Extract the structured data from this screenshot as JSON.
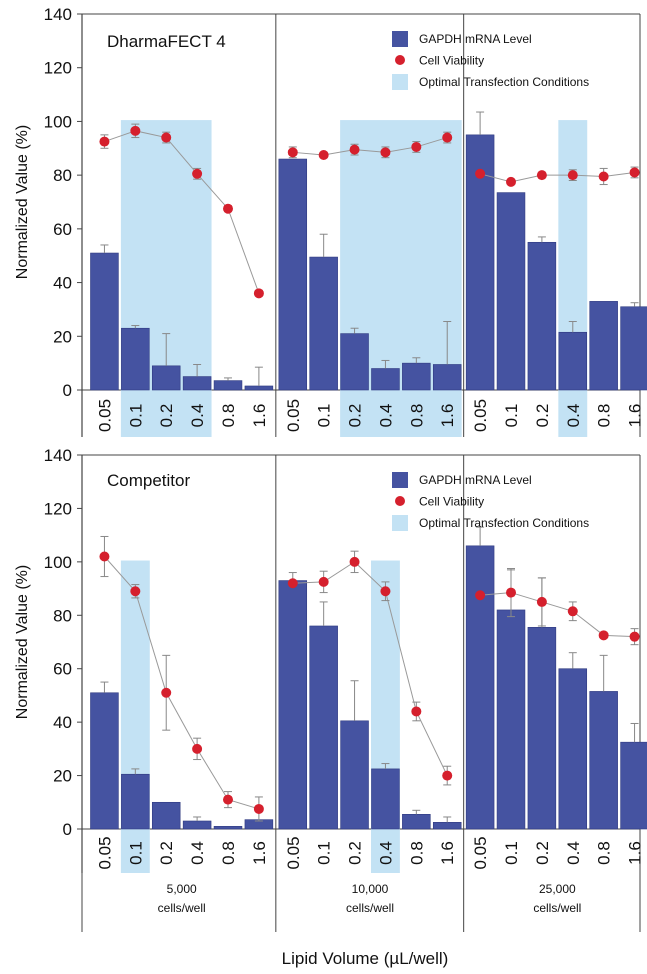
{
  "figure": {
    "xlabel": "Lipid Volume (µL/well)",
    "ylabel": "Normalized Value (%)"
  },
  "colors": {
    "bar": "#4553a1",
    "bar_edge": "#2f3a80",
    "viability": "#d5202d",
    "highlight": "#c3e2f4",
    "axis": "#444444",
    "grid_text": "#111111"
  },
  "groups": [
    {
      "label_line1": "5,000",
      "label_line2": "cells/well"
    },
    {
      "label_line1": "10,000",
      "label_line2": "cells/well"
    },
    {
      "label_line1": "25,000",
      "label_line2": "cells/well"
    }
  ],
  "chart_data": [
    {
      "type": "bar",
      "title": "DharmaFECT 4",
      "ylabel": "Normalized Value (%)",
      "xlabel": "Lipid Volume (µL/well)",
      "ylim": [
        0,
        140
      ],
      "yticks": [
        0,
        20,
        40,
        60,
        80,
        100,
        120,
        140
      ],
      "categories": [
        "0.05",
        "0.1",
        "0.2",
        "0.4",
        "0.8",
        "1.6",
        "0.05",
        "0.1",
        "0.2",
        "0.4",
        "0.8",
        "1.6",
        "0.05",
        "0.1",
        "0.2",
        "0.4",
        "0.8",
        "1.6"
      ],
      "legend": [
        "GAPDH mRNA Level",
        "Cell Viability",
        "Optimal Transfection Conditions"
      ],
      "legend_position": "top-right",
      "series": [
        {
          "name": "GAPDH mRNA Level",
          "kind": "bar",
          "values": [
            51,
            23,
            9,
            5,
            3.5,
            1.5,
            86,
            49.5,
            21,
            8,
            10,
            9.5,
            95,
            73.5,
            55,
            21.5,
            33,
            31
          ],
          "errors": [
            3,
            1,
            12,
            4.5,
            1,
            7,
            0,
            8.5,
            2,
            3,
            2,
            16,
            8.5,
            0,
            2,
            4,
            0,
            1.5
          ]
        },
        {
          "name": "Cell Viability",
          "kind": "line-marker",
          "values": [
            92.5,
            96.5,
            94,
            80.5,
            67.5,
            36,
            88.5,
            87.5,
            89.5,
            88.5,
            90.5,
            94,
            80.5,
            77.5,
            80,
            80,
            79.5,
            81
          ],
          "errors": [
            2.5,
            2.5,
            2,
            2,
            1,
            1,
            2,
            1,
            2,
            2,
            2,
            2,
            0,
            0,
            0,
            2,
            3,
            2
          ]
        }
      ],
      "optimal_indices": [
        1,
        2,
        3,
        8,
        9,
        10,
        11,
        15
      ]
    },
    {
      "type": "bar",
      "title": "Competitor",
      "ylabel": "Normalized Value (%)",
      "xlabel": "Lipid Volume (µL/well)",
      "ylim": [
        0,
        140
      ],
      "yticks": [
        0,
        20,
        40,
        60,
        80,
        100,
        120,
        140
      ],
      "categories": [
        "0.05",
        "0.1",
        "0.2",
        "0.4",
        "0.8",
        "1.6",
        "0.05",
        "0.1",
        "0.2",
        "0.4",
        "0.8",
        "1.6",
        "0.05",
        "0.1",
        "0.2",
        "0.4",
        "0.8",
        "1.6"
      ],
      "legend": [
        "GAPDH mRNA Level",
        "Cell Viability",
        "Optimal Transfection Conditions"
      ],
      "legend_position": "top-right",
      "series": [
        {
          "name": "GAPDH mRNA Level",
          "kind": "bar",
          "values": [
            51,
            20.5,
            10,
            3,
            1,
            3.5,
            93,
            76,
            40.5,
            22.5,
            5.5,
            2.5,
            106,
            82,
            75.5,
            60,
            51.5,
            32.5
          ],
          "errors": [
            4,
            2,
            0,
            1.5,
            0,
            0,
            3,
            9,
            15,
            2,
            1.5,
            2,
            7,
            15,
            18.5,
            6,
            13.5,
            7
          ]
        },
        {
          "name": "Cell Viability",
          "kind": "line-marker",
          "values": [
            102,
            89,
            51,
            30,
            11,
            7.5,
            92,
            92.5,
            100,
            89,
            44,
            20,
            87.5,
            88.5,
            85,
            81.5,
            72.5,
            72
          ],
          "errors": [
            7.5,
            2.5,
            14,
            4,
            3,
            4.5,
            0,
            4,
            4,
            3.5,
            3.5,
            3.5,
            0,
            9,
            9,
            3.5,
            0,
            3
          ]
        }
      ],
      "optimal_indices": [
        1,
        9
      ]
    }
  ]
}
